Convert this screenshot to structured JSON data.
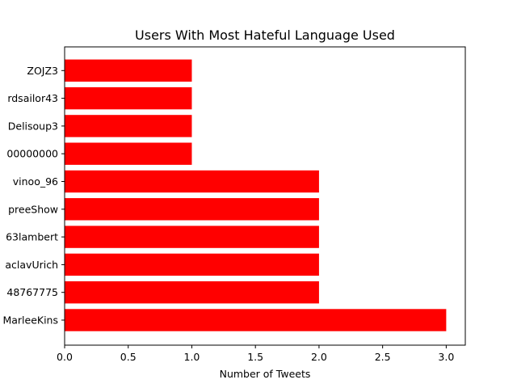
{
  "chart_data": {
    "type": "bar",
    "orientation": "horizontal",
    "title": "Users With Most Hateful Language Used",
    "xlabel": "Number of Tweets",
    "ylabel": "",
    "categories": [
      "MarleeKins",
      "48767775",
      "aclavUrich",
      "63lambert",
      "preeShow",
      "vinoo_96",
      "00000000",
      "Delisoup3",
      "rdsailor43",
      "ZOJZ3"
    ],
    "values": [
      3,
      2,
      2,
      2,
      2,
      2,
      1,
      1,
      1,
      1
    ],
    "xlim": [
      0,
      3.15
    ],
    "xticks": [
      0.0,
      0.5,
      1.0,
      1.5,
      2.0,
      2.5,
      3.0
    ],
    "xtick_labels": [
      "0.0",
      "0.5",
      "1.0",
      "1.5",
      "2.0",
      "2.5",
      "3.0"
    ],
    "bar_color": "#ff0000",
    "grid": false
  }
}
